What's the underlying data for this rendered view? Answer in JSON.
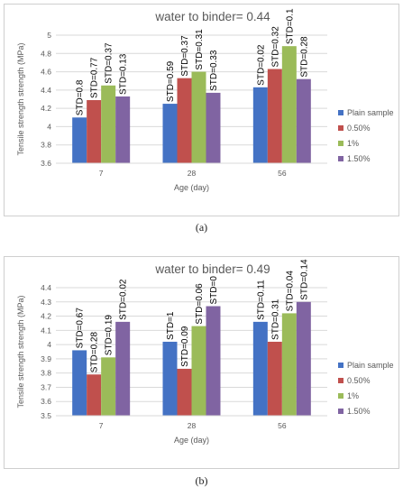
{
  "colors": [
    "#4472c4",
    "#c0504d",
    "#9bbb59",
    "#8064a2"
  ],
  "chart_data": [
    {
      "type": "bar",
      "title": "water to binder= 0.44",
      "xlabel": "Age (day)",
      "ylabel": "Tensile strength strength (MPa)",
      "categories": [
        "7",
        "28",
        "56"
      ],
      "ylim": [
        3.6,
        5.0
      ],
      "ytick_step": 0.2,
      "yticks": [
        "3.6",
        "3.8",
        "4",
        "4.2",
        "4.4",
        "4.6",
        "4.8",
        "5"
      ],
      "grid": true,
      "legend_position": "right",
      "series": [
        {
          "name": "Plain sample",
          "values": [
            4.1,
            4.25,
            4.43
          ],
          "labels": [
            "STD=0.8",
            "STD=0.59",
            "STD=0.02"
          ]
        },
        {
          "name": "0.50%",
          "values": [
            4.29,
            4.53,
            4.63
          ],
          "labels": [
            "STD=0.77",
            "STD=0.37",
            "STD=0.32"
          ]
        },
        {
          "name": "1%",
          "values": [
            4.45,
            4.6,
            4.88
          ],
          "labels": [
            "STD=0.37",
            "STD=0.31",
            "STD=0.1"
          ]
        },
        {
          "name": "1.50%",
          "values": [
            4.33,
            4.37,
            4.52
          ],
          "labels": [
            "STD=0.13",
            "STD=0.33",
            "STD=0.28"
          ]
        }
      ]
    },
    {
      "type": "bar",
      "title": "water to binder= 0.49",
      "xlabel": "Age (day)",
      "ylabel": "Tensile strength strength (MPa)",
      "categories": [
        "7",
        "28",
        "56"
      ],
      "ylim": [
        3.5,
        4.4
      ],
      "ytick_step": 0.1,
      "yticks": [
        "3.5",
        "3.6",
        "3.7",
        "3.8",
        "3.9",
        "4",
        "4.1",
        "4.2",
        "4.3",
        "4.4"
      ],
      "grid": true,
      "legend_position": "right",
      "series": [
        {
          "name": "Plain sample",
          "values": [
            3.96,
            4.02,
            4.16
          ],
          "labels": [
            "STD=0.67",
            "STD=1",
            "STD=0.11"
          ]
        },
        {
          "name": "0.50%",
          "values": [
            3.79,
            3.83,
            4.02
          ],
          "labels": [
            "STD=0.28",
            "STD=0.09",
            "STD=0.31"
          ]
        },
        {
          "name": "1%",
          "values": [
            3.91,
            4.13,
            4.22
          ],
          "labels": [
            "STD=0.19",
            "STD=0.06",
            "STD=0.04"
          ]
        },
        {
          "name": "1.50%",
          "values": [
            4.16,
            4.27,
            4.3
          ],
          "labels": [
            "STD=0.02",
            "STD=0",
            "STD=0.14"
          ]
        }
      ]
    }
  ],
  "captions": [
    "(a)",
    "(b)"
  ]
}
